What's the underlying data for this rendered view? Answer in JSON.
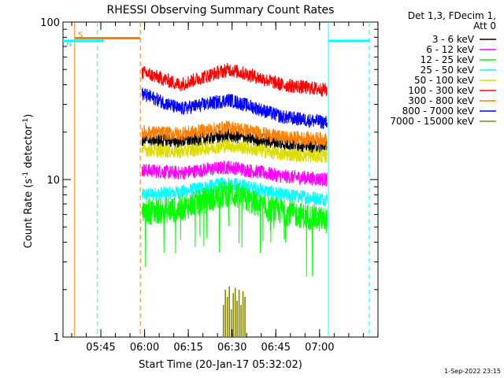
{
  "chart_data": {
    "type": "line",
    "title": "RHESSI Observing Summary Count Rates",
    "xlabel": "Start Time (20-Jan-17 05:32:02)",
    "ylabel_main": "Count Rate (s",
    "ylabel_sup1": "-1",
    "ylabel_mid": " detector",
    "ylabel_sup2": "-1",
    "ylabel_end": ")",
    "y_scale": "log",
    "ylim": [
      1,
      100
    ],
    "x_unit": "minutes after 05:32:02",
    "xlim": [
      0,
      108
    ],
    "x_ticks": [
      {
        "label": "05:45",
        "value": 12.97
      },
      {
        "label": "06:00",
        "value": 27.97
      },
      {
        "label": "06:15",
        "value": 42.97
      },
      {
        "label": "06:30",
        "value": 57.97
      },
      {
        "label": "06:45",
        "value": 72.97
      },
      {
        "label": "07:00",
        "value": 87.97
      }
    ],
    "y_ticks": [
      {
        "label": "1",
        "value": 1
      },
      {
        "label": "10",
        "value": 10
      },
      {
        "label": "100",
        "value": 100
      }
    ],
    "legend_header": [
      "Det 1,3, FDecim 1,",
      "Att 0"
    ],
    "legend_position": "right",
    "data_start": 27.1,
    "data_end": 90.6,
    "series": [
      {
        "name": "3 - 6 keV",
        "color": "#000000",
        "values": [
          [
            27.1,
            18
          ],
          [
            40,
            17.5
          ],
          [
            57,
            19
          ],
          [
            75,
            17
          ],
          [
            90.6,
            16
          ]
        ]
      },
      {
        "name": "6 - 12 keV",
        "color": "#ff00ff",
        "values": [
          [
            27.1,
            11.5
          ],
          [
            40,
            11
          ],
          [
            57,
            12
          ],
          [
            75,
            10.5
          ],
          [
            90.6,
            10
          ]
        ]
      },
      {
        "name": "12 - 25 keV",
        "color": "#00ff00",
        "values": [
          [
            27.1,
            6.2
          ],
          [
            40,
            6.5
          ],
          [
            57,
            8.2
          ],
          [
            70,
            6.5
          ],
          [
            90.6,
            5.5
          ]
        ]
      },
      {
        "name": "25 - 50 keV",
        "color": "#00ffff",
        "values": [
          [
            27.1,
            8
          ],
          [
            40,
            8.3
          ],
          [
            57,
            9.5
          ],
          [
            75,
            8
          ],
          [
            90.6,
            7.5
          ]
        ]
      },
      {
        "name": "50 - 100 keV",
        "color": "#dddd00",
        "values": [
          [
            27.1,
            15.5
          ],
          [
            40,
            15
          ],
          [
            57,
            16.5
          ],
          [
            75,
            14.5
          ],
          [
            90.6,
            14
          ]
        ]
      },
      {
        "name": "100 - 300 keV",
        "color": "#ff0000",
        "values": [
          [
            27.1,
            48
          ],
          [
            40,
            40
          ],
          [
            57,
            50
          ],
          [
            75,
            40
          ],
          [
            90.6,
            37
          ]
        ]
      },
      {
        "name": "300 - 800 keV",
        "color": "#ff8000",
        "values": [
          [
            27.1,
            20
          ],
          [
            40,
            19.5
          ],
          [
            57,
            21.5
          ],
          [
            75,
            18.5
          ],
          [
            90.6,
            18
          ]
        ]
      },
      {
        "name": "800 - 7000 keV",
        "color": "#0000ff",
        "values": [
          [
            27.1,
            35
          ],
          [
            40,
            28
          ],
          [
            57,
            32
          ],
          [
            75,
            25
          ],
          [
            90.6,
            23
          ]
        ]
      },
      {
        "name": "7000 - 15000 keV",
        "color": "#888800",
        "values": [
          [
            55,
            1
          ],
          [
            62.4,
            1
          ]
        ]
      }
    ],
    "markers": [
      {
        "label": "S",
        "color": "#ff8000",
        "y": 79,
        "x_start": 4,
        "x_end": 26.5
      },
      {
        "label": "N",
        "color": "#00ffff",
        "y": 76,
        "x_start": 0,
        "x_end": 14
      },
      {
        "label": "",
        "color": "#00ffff",
        "y": 76,
        "x_start": 91,
        "x_end": 105
      }
    ],
    "vlines": [
      {
        "x": 4,
        "color": "#ff8000",
        "dash": "solid"
      },
      {
        "x": 11.8,
        "color": "#00ffff",
        "dash": "dashed"
      },
      {
        "x": 26.5,
        "color": "#ff8000",
        "dash": "dashed"
      },
      {
        "x": 91,
        "color": "#00ffff",
        "dash": "solid"
      },
      {
        "x": 105,
        "color": "#00ffff",
        "dash": "dashed"
      }
    ],
    "footer": "1-Sep-2022 23:15"
  }
}
